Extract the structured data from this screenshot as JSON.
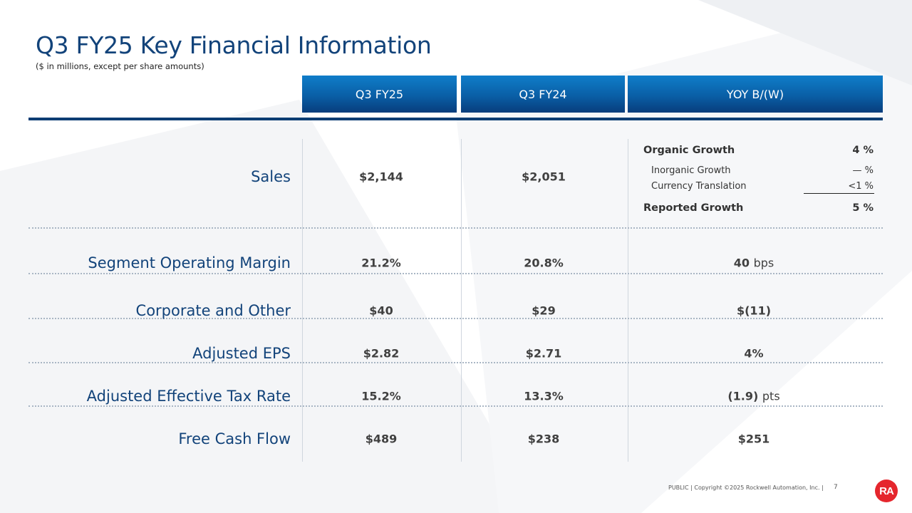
{
  "title": "Q3 FY25 Key Financial Information",
  "subtitle": "($ in millions, except per share amounts)",
  "columns": [
    "Q3 FY25",
    "Q3 FY24",
    "YOY B/(W)"
  ],
  "sales": {
    "label": "Sales",
    "q3fy25": "$2,144",
    "q3fy24": "$2,051",
    "growth": {
      "organic_label": "Organic Growth",
      "organic_value": "4 %",
      "inorganic_label": "Inorganic Growth",
      "inorganic_value": "— %",
      "currency_label": "Currency Translation",
      "currency_value": "<1 %",
      "reported_label": "Reported Growth",
      "reported_value": "5 %"
    }
  },
  "rows": [
    {
      "label": "Segment Operating Margin",
      "q3fy25": "21.2%",
      "q3fy24": "20.8%",
      "yoy": "40",
      "yoy_unit": "bps"
    },
    {
      "label": "Corporate and Other",
      "q3fy25": "$40",
      "q3fy24": "$29",
      "yoy": "$(11)",
      "yoy_unit": ""
    },
    {
      "label": "Adjusted EPS",
      "q3fy25": "$2.82",
      "q3fy24": "$2.71",
      "yoy": "4%",
      "yoy_unit": ""
    },
    {
      "label": "Adjusted Effective Tax Rate",
      "q3fy25": "15.2%",
      "q3fy24": "13.3%",
      "yoy": "(1.9)",
      "yoy_unit": "pts"
    },
    {
      "label": "Free Cash Flow",
      "q3fy25": "$489",
      "q3fy24": "$238",
      "yoy": "$251",
      "yoy_unit": ""
    }
  ],
  "footer": {
    "text": "PUBLIC | Copyright ©2025 Rockwell Automation, Inc. |",
    "page": "7",
    "logo_text": "RA"
  }
}
